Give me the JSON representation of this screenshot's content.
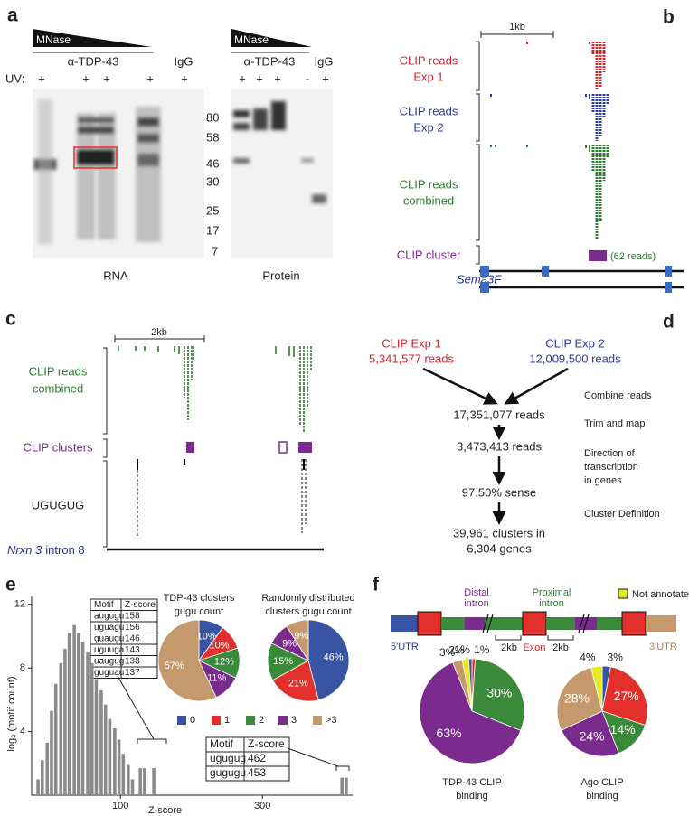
{
  "panels": {
    "a": {
      "label": "a",
      "mnase": [
        "MNase",
        "MNase"
      ],
      "antibody": [
        "α-TDP-43",
        "α-TDP-43"
      ],
      "igg": [
        "IgG",
        "IgG"
      ],
      "uv": "UV:",
      "uv_rna": [
        "+",
        "+",
        "+",
        "+",
        "+"
      ],
      "uv_protein": [
        "+",
        "+",
        "+",
        "-",
        "+"
      ],
      "markers": [
        "80",
        "58",
        "46",
        "30",
        "25",
        "17",
        "7"
      ],
      "gels": [
        "RNA",
        "Protein"
      ]
    },
    "b": {
      "label": "b",
      "scale": "1kb",
      "exp1": [
        "CLIP reads",
        "Exp 1"
      ],
      "exp2": [
        "CLIP reads",
        "Exp 2"
      ],
      "combined": [
        "CLIP reads",
        "combined"
      ],
      "cluster": "CLIP cluster",
      "cluster_reads": "(62 reads)",
      "gene": "Sema3F"
    },
    "c": {
      "label": "c",
      "scale": "2kb",
      "combined": [
        "CLIP reads",
        "combined"
      ],
      "clusters": "CLIP clusters",
      "motif": "UGUGUG",
      "gene": "Nrxn 3",
      "region": "intron 8"
    },
    "d": {
      "label": "d",
      "exp1": [
        "CLIP Exp 1",
        "5,341,577 reads"
      ],
      "exp2": [
        "CLIP Exp 2",
        "12,009,500 reads"
      ],
      "steps": [
        "17,351,077 reads",
        "3,473,413 reads",
        "97.50% sense",
        "39,961 clusters in",
        "6,304 genes"
      ],
      "actions": [
        "Combine reads",
        "Trim and map",
        "Direction of",
        "transcription",
        "in genes",
        "Cluster Definition"
      ]
    },
    "e": {
      "label": "e",
      "table1": {
        "header": [
          "Motif",
          "Z-score"
        ],
        "rows": [
          [
            "augugu",
            "158"
          ],
          [
            "uguagu",
            "156"
          ],
          [
            "guaugu",
            "146"
          ],
          [
            "uguuga",
            "143"
          ],
          [
            "uaugug",
            "138"
          ],
          [
            "guguau",
            "137"
          ]
        ]
      },
      "table2": {
        "header": [
          "Motif",
          "Z-score"
        ],
        "rows": [
          [
            "ugugug",
            "462"
          ],
          [
            "gugugu",
            "453"
          ]
        ]
      }
    },
    "f": {
      "label": "f",
      "distal": [
        "Distal",
        "intron"
      ],
      "proximal": [
        "Proximal",
        "intron"
      ],
      "not_annotated": "Not annotated",
      "utr5": "5'UTR",
      "exon": "Exon",
      "utr3": "3'UTR",
      "dist": [
        "2kb",
        "2kb"
      ]
    }
  },
  "chart_data": [
    {
      "type": "bar",
      "xlabel": "Z-score",
      "ylabel": "log₂ (motif count)",
      "color": "#8a8a8a",
      "x": [
        -16,
        -10,
        -3,
        3,
        9,
        16,
        22,
        28,
        35,
        41,
        47,
        54,
        60,
        66,
        73,
        79,
        85,
        92,
        98,
        104,
        111,
        117,
        128,
        134,
        147,
        412,
        418
      ],
      "values": [
        1,
        2.2,
        3.3,
        5.3,
        7,
        8.3,
        9.2,
        10.2,
        10.7,
        10.2,
        9.6,
        9,
        8.3,
        7.3,
        6.6,
        5.7,
        4.8,
        4.2,
        3.5,
        2.6,
        1.9,
        1,
        1.7,
        1.7,
        1.7,
        1.1,
        1.1
      ],
      "xlim": [
        -25,
        427
      ],
      "xticks": [
        100,
        300
      ],
      "ylim": [
        0,
        12.5
      ],
      "yticks": [
        4,
        8,
        12
      ]
    },
    {
      "type": "pie",
      "title": [
        "TDP-43 clusters",
        "gugu count"
      ],
      "categories": [
        "0",
        "1",
        "2",
        "3",
        ">3"
      ],
      "colors": [
        "#3a54a4",
        "#e3302c",
        "#3b8a3b",
        "#7b2a8e",
        "#c49a6c"
      ],
      "values": [
        10,
        10,
        12,
        11,
        57
      ],
      "value_labels": [
        "10%",
        "10%",
        "12%",
        "11%",
        "57%"
      ]
    },
    {
      "type": "pie",
      "title": [
        "Randomly distributed",
        "clusters gugu count"
      ],
      "colors": [
        "#3a54a4",
        "#e3302c",
        "#3b8a3b",
        "#7b2a8e",
        "#c49a6c"
      ],
      "values": [
        46,
        21,
        15,
        9,
        9
      ],
      "value_labels": [
        "46%",
        "21%",
        "15%",
        "9%",
        "9%"
      ]
    },
    {
      "type": "pie",
      "title": [
        "TDP-43 CLIP",
        "binding"
      ],
      "colors": [
        "#e3302c",
        "#3b8a3b",
        "#7b2a8e",
        "#c49a6c",
        "#e8e81e",
        "#3a54a4"
      ],
      "values": [
        1,
        30,
        63,
        3,
        2,
        1
      ],
      "value_labels": [
        "1%",
        "30%",
        "63%",
        "3%",
        "2%",
        "1%"
      ]
    },
    {
      "type": "pie",
      "title": [
        "Ago CLIP",
        "binding"
      ],
      "colors": [
        "#3a54a4",
        "#e3302c",
        "#3b8a3b",
        "#7b2a8e",
        "#c49a6c",
        "#e8e81e"
      ],
      "values": [
        3,
        27,
        14,
        24,
        28,
        4
      ],
      "value_labels": [
        "3%",
        "27%",
        "14%",
        "24%",
        "28%",
        "4%"
      ]
    }
  ]
}
